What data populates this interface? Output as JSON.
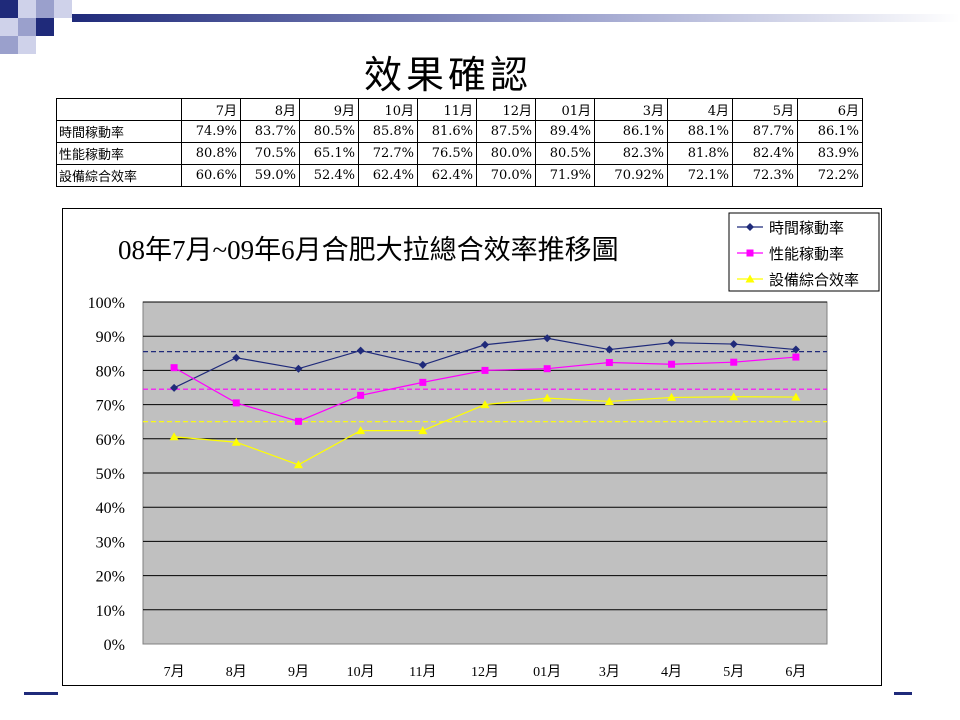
{
  "slide": {
    "title": "效果確認"
  },
  "table": {
    "columns": [
      "",
      "7月",
      "8月",
      "9月",
      "10月",
      "11月",
      "12月",
      "01月",
      "3月",
      "4月",
      "5月",
      "6月"
    ],
    "rows": [
      {
        "label": "時間稼動率",
        "cells": [
          "74.9%",
          "83.7%",
          "80.5%",
          "85.8%",
          "81.6%",
          "87.5%",
          "89.4%",
          "86.1%",
          "88.1%",
          "87.7%",
          "86.1%"
        ]
      },
      {
        "label": "性能稼動率",
        "cells": [
          "80.8%",
          "70.5%",
          "65.1%",
          "72.7%",
          "76.5%",
          "80.0%",
          "80.5%",
          "82.3%",
          "81.8%",
          "82.4%",
          "83.9%"
        ]
      },
      {
        "label": "設備綜合效率",
        "cells": [
          "60.6%",
          "59.0%",
          "52.4%",
          "62.4%",
          "62.4%",
          "70.0%",
          "71.9%",
          "70.92%",
          "72.1%",
          "72.3%",
          "72.2%"
        ]
      }
    ]
  },
  "chart_data": {
    "type": "line",
    "title": "08年7月~09年6月合肥大拉總合效率推移圖",
    "categories": [
      "7月",
      "8月",
      "9月",
      "10月",
      "11月",
      "12月",
      "01月",
      "3月",
      "4月",
      "5月",
      "6月"
    ],
    "y_tick_labels": [
      "0%",
      "10%",
      "20%",
      "30%",
      "40%",
      "50%",
      "60%",
      "70%",
      "80%",
      "90%",
      "100%"
    ],
    "ylim": [
      0,
      100
    ],
    "grid": true,
    "legend_position": "top-right",
    "series": [
      {
        "name": "時間稼動率",
        "color": "#1f2a7a",
        "marker": "diamond",
        "values": [
          74.9,
          83.7,
          80.5,
          85.8,
          81.6,
          87.5,
          89.4,
          86.1,
          88.1,
          87.7,
          86.1
        ],
        "reference": 85.5
      },
      {
        "name": "性能稼動率",
        "color": "#ff00ff",
        "marker": "square",
        "values": [
          80.8,
          70.5,
          65.1,
          72.7,
          76.5,
          80.0,
          80.5,
          82.3,
          81.8,
          82.4,
          83.9
        ],
        "reference": 74.5
      },
      {
        "name": "設備綜合效率",
        "color": "#ffff00",
        "marker": "triangle",
        "values": [
          60.6,
          59.0,
          52.4,
          62.4,
          62.4,
          70.0,
          71.9,
          70.92,
          72.1,
          72.3,
          72.2
        ],
        "reference": 65.0
      }
    ]
  }
}
